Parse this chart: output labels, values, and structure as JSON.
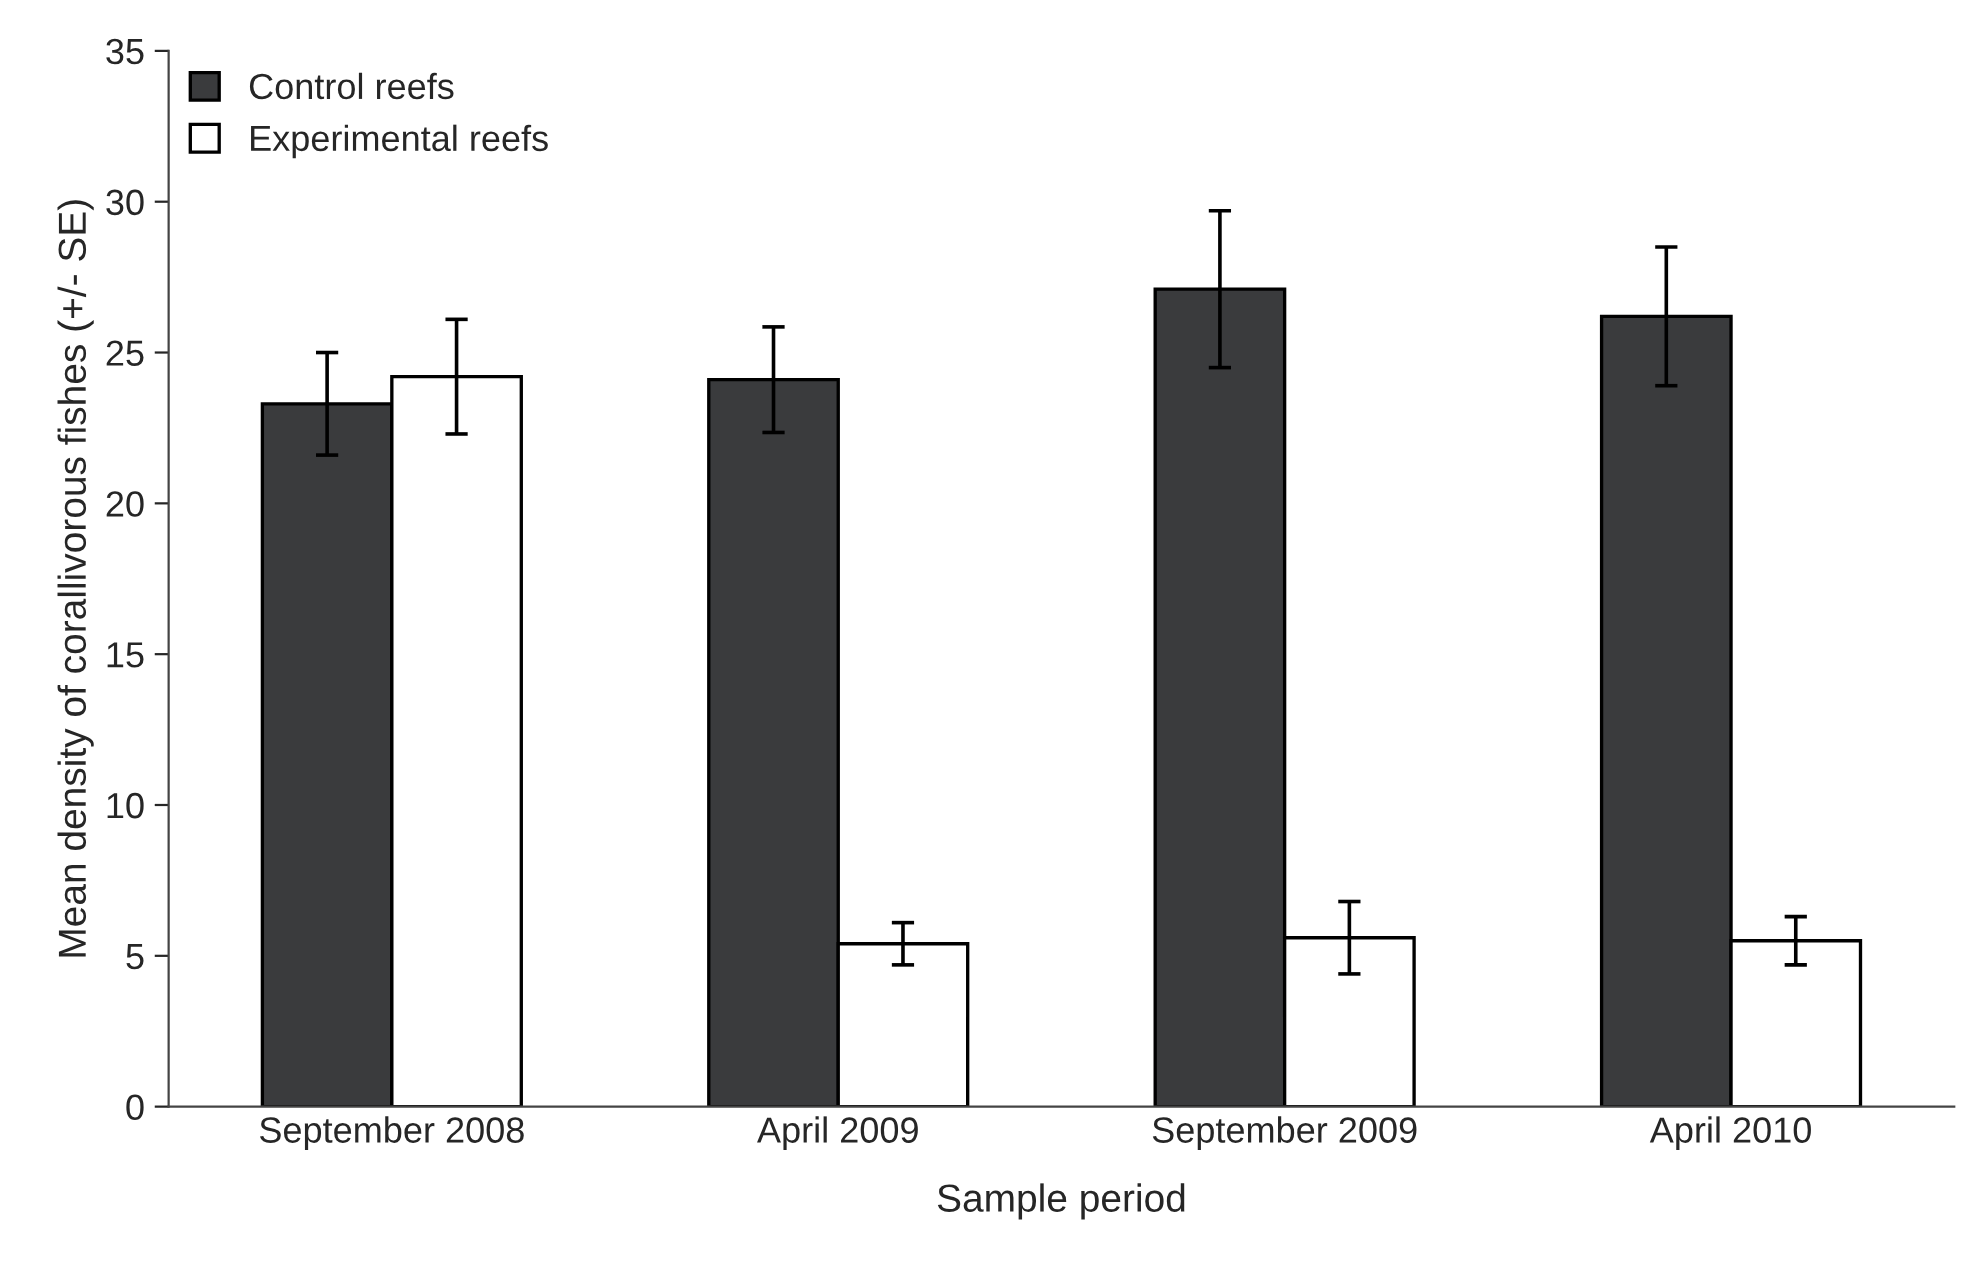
{
  "chart_data": {
    "type": "bar",
    "xlabel": "Sample period",
    "ylabel": "Mean density of corallivorous fishes (+/- SE)",
    "categories": [
      "September 2008",
      "April 2009",
      "September 2009",
      "April 2010"
    ],
    "series": [
      {
        "name": "Control reefs",
        "color": "#3a3b3d",
        "values": [
          23.3,
          24.1,
          27.1,
          26.2
        ],
        "errors": [
          1.7,
          1.75,
          2.6,
          2.3
        ]
      },
      {
        "name": "Experimental reefs",
        "color": "#ffffff",
        "values": [
          24.2,
          5.4,
          5.6,
          5.5
        ],
        "errors": [
          1.9,
          0.7,
          1.2,
          0.8
        ]
      }
    ],
    "ylim": [
      0,
      35
    ],
    "yticks": [
      0,
      5,
      10,
      15,
      20,
      25,
      30,
      35
    ],
    "grid": false,
    "legend": "top left"
  }
}
